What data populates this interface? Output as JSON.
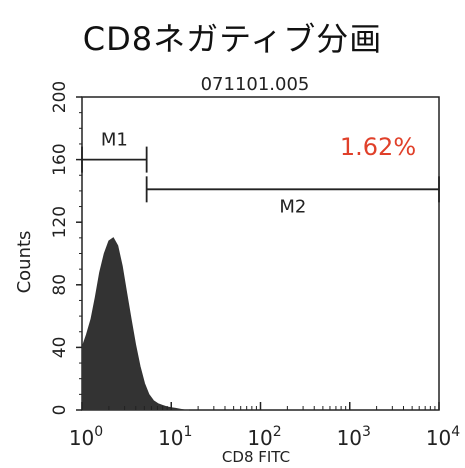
{
  "heading": "CD8ネガティブ分画",
  "chart_data": {
    "type": "histogram",
    "title": "071101.005",
    "xlabel": "CD8 FITC",
    "ylabel": "Counts",
    "x_scale": "log",
    "xlim": [
      1,
      10000
    ],
    "ylim": [
      0,
      200
    ],
    "x_ticks": [
      {
        "value": 1,
        "base": "10",
        "exp": "0"
      },
      {
        "value": 10,
        "base": "10",
        "exp": "1"
      },
      {
        "value": 100,
        "base": "10",
        "exp": "2"
      },
      {
        "value": 1000,
        "base": "10",
        "exp": "3"
      },
      {
        "value": 10000,
        "base": "10",
        "exp": "4"
      }
    ],
    "y_ticks": [
      "0",
      "40",
      "80",
      "120",
      "160",
      "200"
    ],
    "grid": false,
    "fill_color": "#333333",
    "histogram": {
      "x": [
        1.0,
        1.12,
        1.26,
        1.41,
        1.58,
        1.78,
        2.0,
        2.24,
        2.51,
        2.82,
        3.16,
        3.55,
        3.98,
        4.47,
        5.01,
        5.62,
        6.31,
        7.08,
        7.94,
        8.91,
        10.0,
        11.2,
        12.6,
        14.1,
        15.8
      ],
      "y": [
        40,
        48,
        58,
        72,
        88,
        100,
        108,
        110,
        105,
        92,
        75,
        58,
        42,
        28,
        17,
        10,
        6,
        4,
        3,
        2,
        1.5,
        1,
        0.5,
        0,
        0
      ]
    },
    "gates": [
      {
        "name": "M1",
        "x_start": 1,
        "x_end": 5.3,
        "y": 160
      },
      {
        "name": "M2",
        "x_start": 5.3,
        "x_end": 10000,
        "y": 141
      }
    ],
    "annotation": {
      "text": "1.62%",
      "color": "#e0402a"
    }
  }
}
